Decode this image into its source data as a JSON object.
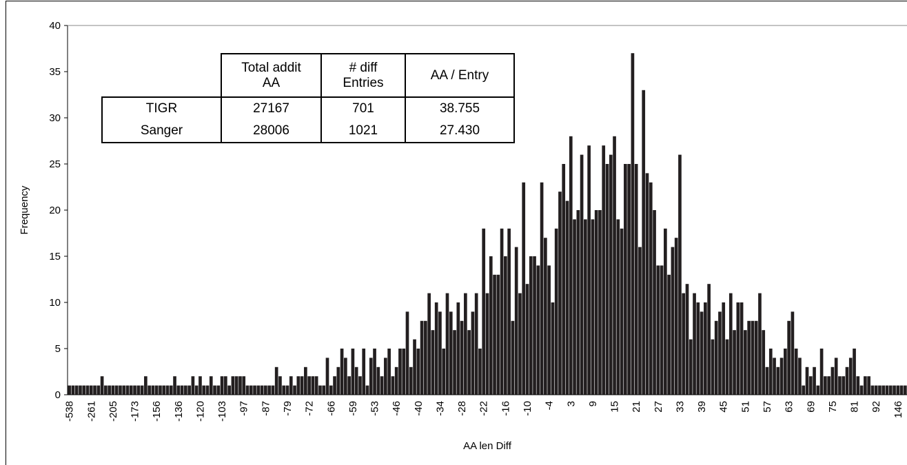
{
  "chart_data": {
    "type": "bar",
    "x_label": "AA len Diff",
    "y_label": "Frequency",
    "color": "#231f20",
    "ylim": [
      0,
      40
    ],
    "yticks": [
      0,
      5,
      10,
      15,
      20,
      25,
      30,
      35,
      40
    ],
    "categories": [
      "-538",
      null,
      null,
      null,
      null,
      null,
      "-261",
      null,
      null,
      null,
      null,
      null,
      "-205",
      null,
      null,
      null,
      null,
      null,
      "-173",
      null,
      null,
      null,
      null,
      null,
      "-156",
      null,
      null,
      null,
      null,
      null,
      "-136",
      null,
      null,
      null,
      null,
      null,
      "-120",
      null,
      null,
      null,
      null,
      null,
      "-103",
      null,
      null,
      null,
      null,
      null,
      "-97",
      null,
      null,
      null,
      null,
      null,
      "-87",
      null,
      null,
      null,
      null,
      null,
      "-79",
      null,
      null,
      null,
      null,
      null,
      "-72",
      null,
      null,
      null,
      null,
      null,
      "-66",
      null,
      null,
      null,
      null,
      null,
      "-59",
      null,
      null,
      null,
      null,
      null,
      "-53",
      null,
      null,
      null,
      null,
      null,
      "-46",
      null,
      null,
      null,
      null,
      null,
      "-40",
      null,
      null,
      null,
      null,
      null,
      "-34",
      null,
      null,
      null,
      null,
      null,
      "-28",
      null,
      null,
      null,
      null,
      null,
      "-22",
      null,
      null,
      null,
      null,
      null,
      "-16",
      null,
      null,
      null,
      null,
      null,
      "-10",
      null,
      null,
      null,
      null,
      null,
      "-4",
      null,
      null,
      null,
      null,
      null,
      "3",
      null,
      null,
      null,
      null,
      null,
      "9",
      null,
      null,
      null,
      null,
      null,
      "15",
      null,
      null,
      null,
      null,
      null,
      "21",
      null,
      null,
      null,
      null,
      null,
      "27",
      null,
      null,
      null,
      null,
      null,
      "33",
      null,
      null,
      null,
      null,
      null,
      "39",
      null,
      null,
      null,
      null,
      null,
      "45",
      null,
      null,
      null,
      null,
      null,
      "51",
      null,
      null,
      null,
      null,
      null,
      "57",
      null,
      null,
      null,
      null,
      null,
      "63",
      null,
      null,
      null,
      null,
      null,
      "69",
      null,
      null,
      null,
      null,
      null,
      "75",
      null,
      null,
      null,
      null,
      null,
      "81",
      null,
      null,
      null,
      null,
      null,
      "92",
      null,
      null,
      null,
      null,
      null,
      "146",
      null,
      null
    ],
    "values": [
      1,
      1,
      1,
      1,
      1,
      1,
      1,
      1,
      1,
      2,
      1,
      1,
      1,
      1,
      1,
      1,
      1,
      1,
      1,
      1,
      1,
      2,
      1,
      1,
      1,
      1,
      1,
      1,
      1,
      2,
      1,
      1,
      1,
      1,
      2,
      1,
      2,
      1,
      1,
      2,
      1,
      1,
      2,
      2,
      1,
      2,
      2,
      2,
      2,
      1,
      1,
      1,
      1,
      1,
      1,
      1,
      1,
      3,
      2,
      1,
      1,
      2,
      1,
      2,
      2,
      3,
      2,
      2,
      2,
      1,
      1,
      4,
      1,
      2,
      3,
      5,
      4,
      2,
      5,
      3,
      2,
      5,
      1,
      4,
      5,
      3,
      2,
      4,
      5,
      2,
      3,
      5,
      5,
      9,
      3,
      6,
      5,
      8,
      8,
      11,
      7,
      10,
      9,
      5,
      11,
      9,
      7,
      10,
      8,
      11,
      7,
      9,
      11,
      5,
      18,
      11,
      15,
      13,
      13,
      18,
      15,
      18,
      8,
      16,
      11,
      23,
      12,
      15,
      15,
      14,
      23,
      17,
      14,
      10,
      18,
      22,
      25,
      21,
      28,
      19,
      20,
      26,
      19,
      27,
      19,
      20,
      20,
      27,
      25,
      26,
      28,
      19,
      18,
      25,
      25,
      37,
      25,
      16,
      33,
      24,
      23,
      20,
      14,
      14,
      18,
      13,
      16,
      17,
      26,
      11,
      12,
      6,
      11,
      10,
      9,
      10,
      12,
      6,
      8,
      9,
      10,
      6,
      11,
      7,
      10,
      10,
      7,
      8,
      8,
      8,
      11,
      7,
      3,
      5,
      4,
      3,
      4,
      5,
      8,
      9,
      5,
      4,
      1,
      3,
      2,
      3,
      1,
      5,
      2,
      2,
      3,
      4,
      2,
      2,
      3,
      4,
      5,
      2,
      1,
      2,
      2,
      1,
      1,
      1,
      1,
      1,
      1,
      1,
      1,
      1,
      1
    ]
  },
  "table": {
    "header": [
      [
        "Total addit",
        "AA"
      ],
      [
        "# diff",
        "Entries"
      ],
      [
        "AA / Entry"
      ]
    ],
    "rows": [
      [
        "TIGR",
        "27167",
        "701",
        "38.755"
      ],
      [
        "Sanger",
        "28006",
        "1021",
        "27.430"
      ]
    ]
  }
}
